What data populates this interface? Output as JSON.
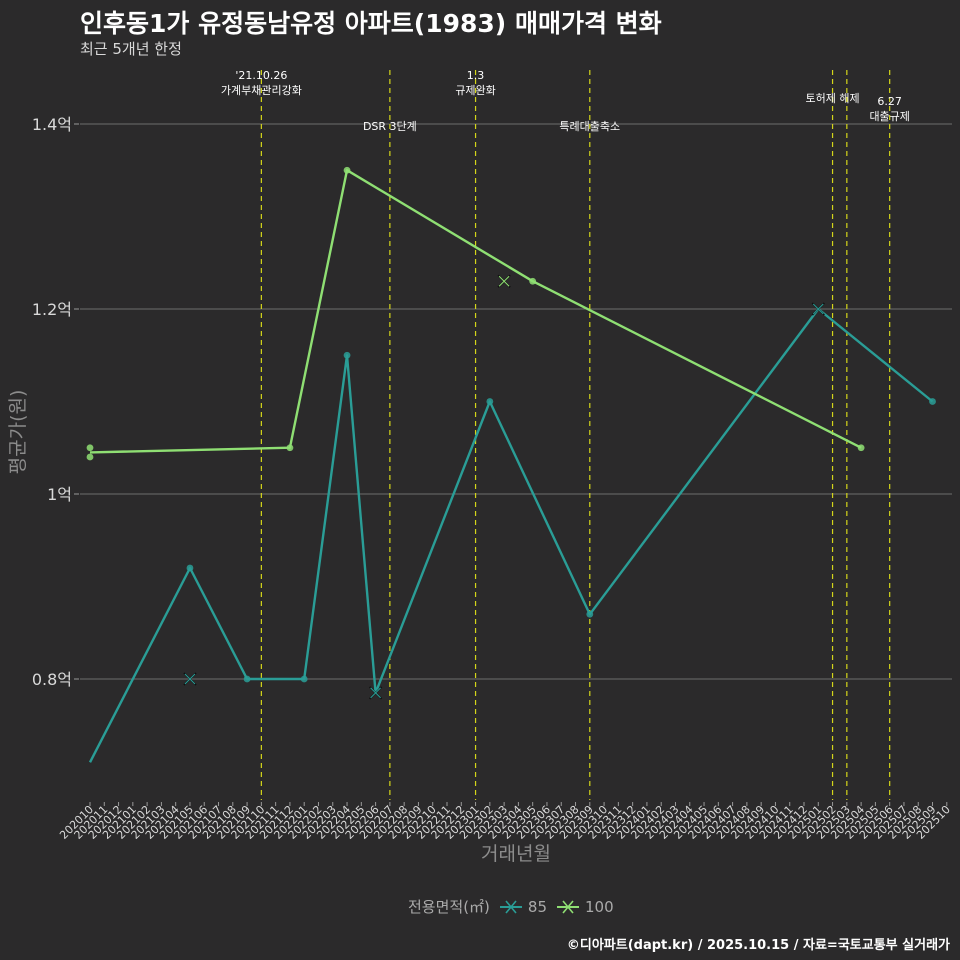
{
  "title": "인후동1가 유정동남유정 아파트(1983) 매매가격 변화",
  "subtitle": "최근 5개년 한정",
  "caption": "©디아파트(dapt.kr) / 2025.10.15 / 자료=국토교통부 실거래가",
  "legend": {
    "title": "전용면적(㎡)",
    "items": [
      {
        "label": "85",
        "color": "#2a9d96"
      },
      {
        "label": "100",
        "color": "#8fdf73"
      }
    ]
  },
  "chart_data": {
    "type": "line",
    "xlabel": "거래년월",
    "ylabel": "평균가(원)",
    "ylim": [
      0.67,
      1.47
    ],
    "yticks": [
      {
        "value": 0.8,
        "label": "0.8억"
      },
      {
        "value": 1.0,
        "label": "1억"
      },
      {
        "value": 1.2,
        "label": "1.2억"
      },
      {
        "value": 1.4,
        "label": "1.4억"
      }
    ],
    "x_categories": [
      "202010",
      "202011",
      "202012",
      "202101",
      "202102",
      "202103",
      "202104",
      "202105",
      "202106",
      "202107",
      "202108",
      "202109",
      "202110",
      "202111",
      "202112",
      "202201",
      "202202",
      "202203",
      "202204",
      "202205",
      "202206",
      "202207",
      "202208",
      "202209",
      "202210",
      "202211",
      "202212",
      "202301",
      "202302",
      "202303",
      "202304",
      "202305",
      "202306",
      "202307",
      "202308",
      "202309",
      "202310",
      "202311",
      "202312",
      "202401",
      "202402",
      "202403",
      "202404",
      "202405",
      "202406",
      "202407",
      "202408",
      "202409",
      "202410",
      "202411",
      "202412",
      "202501",
      "202502",
      "202503",
      "202504",
      "202505",
      "202506",
      "202507",
      "202508",
      "202509",
      "202510"
    ],
    "series": [
      {
        "name": "85",
        "color": "#2a9d96",
        "line": [
          {
            "x": "202010",
            "y": 0.71
          },
          {
            "x": "202105",
            "y": 0.92
          },
          {
            "x": "202109",
            "y": 0.8
          },
          {
            "x": "202201",
            "y": 0.8
          },
          {
            "x": "202204",
            "y": 1.15
          },
          {
            "x": "202206",
            "y": 0.785
          },
          {
            "x": "202302",
            "y": 1.1
          },
          {
            "x": "202309",
            "y": 0.87
          },
          {
            "x": "202501",
            "y": 1.2
          },
          {
            "x": "202509",
            "y": 1.1
          }
        ],
        "points": [
          {
            "x": "202105",
            "y": 0.92
          },
          {
            "x": "202109",
            "y": 0.8
          },
          {
            "x": "202201",
            "y": 0.8
          },
          {
            "x": "202204",
            "y": 1.15
          },
          {
            "x": "202302",
            "y": 1.1
          },
          {
            "x": "202309",
            "y": 0.87
          },
          {
            "x": "202509",
            "y": 1.1
          }
        ],
        "crosses": [
          {
            "x": "202105",
            "y": 0.8
          },
          {
            "x": "202206",
            "y": 0.785
          },
          {
            "x": "202501",
            "y": 1.2
          }
        ]
      },
      {
        "name": "100",
        "color": "#8fdf73",
        "line": [
          {
            "x": "202010",
            "y": 1.045
          },
          {
            "x": "202112",
            "y": 1.05
          },
          {
            "x": "202204",
            "y": 1.35
          },
          {
            "x": "202305",
            "y": 1.23
          },
          {
            "x": "202504",
            "y": 1.05
          }
        ],
        "points": [
          {
            "x": "202010",
            "y": 1.05
          },
          {
            "x": "202010",
            "y": 1.04
          },
          {
            "x": "202112",
            "y": 1.05
          },
          {
            "x": "202204",
            "y": 1.35
          },
          {
            "x": "202305",
            "y": 1.23
          },
          {
            "x": "202504",
            "y": 1.05
          }
        ],
        "crosses": [
          {
            "x": "202303",
            "y": 1.23
          }
        ]
      }
    ],
    "events": [
      {
        "x": "202110",
        "lines": [
          "'21.10.26",
          "가계부채관리강화"
        ],
        "level": 1
      },
      {
        "x": "202207",
        "lines": [
          "DSR 3단계"
        ],
        "level": 2
      },
      {
        "x": "202301",
        "lines": [
          "1.3",
          "규제완화"
        ],
        "level": 1
      },
      {
        "x": "202309",
        "lines": [
          "특례대출축소"
        ],
        "level": 2
      },
      {
        "x": "202502",
        "lines": [
          "토허제 해제"
        ],
        "level": 1
      },
      {
        "x": "202503",
        "lines": [],
        "level": 1
      },
      {
        "x": "202506",
        "lines": [
          "6.27",
          "대출규제"
        ],
        "level": 3
      }
    ]
  }
}
